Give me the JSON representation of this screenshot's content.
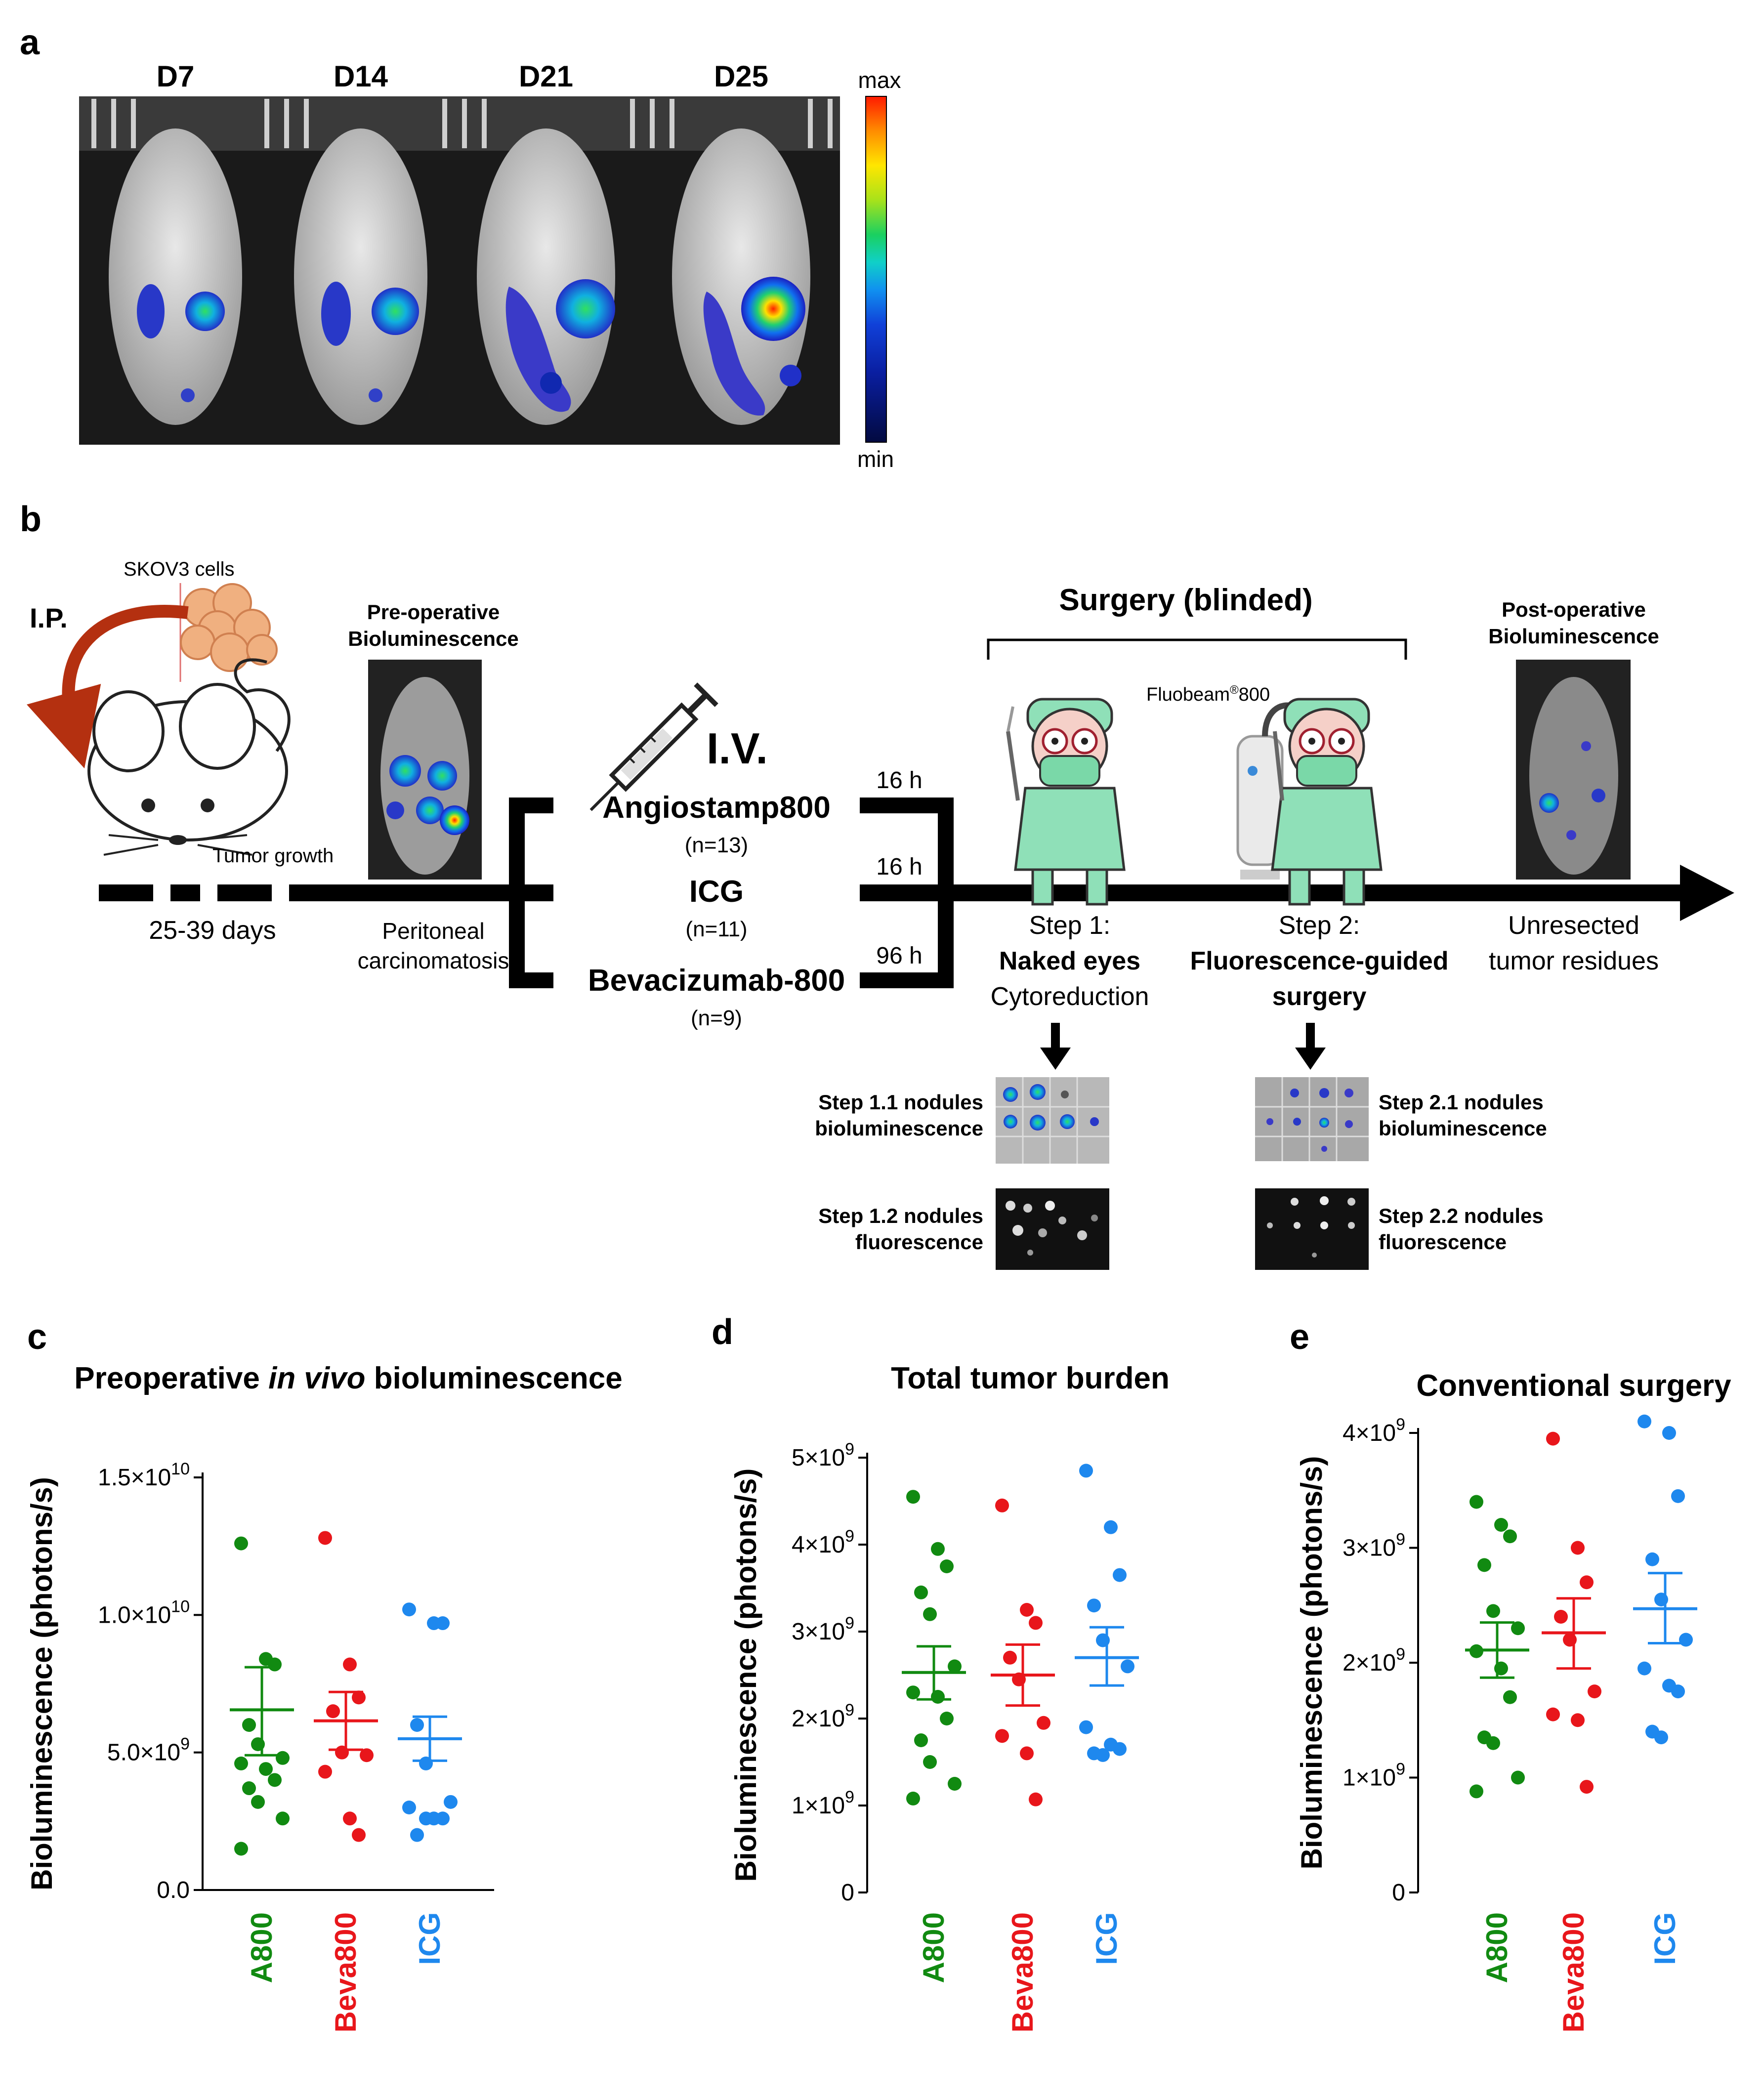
{
  "panel_a": {
    "letter": "a",
    "days": [
      "D7",
      "D14",
      "D21",
      "D25"
    ],
    "colorbar": {
      "max_label": "max",
      "min_label": "min"
    }
  },
  "panel_b": {
    "letter": "b",
    "skov3_label": "SKOV3 cells",
    "ip_label": "I.P.",
    "preop_line1": "Pre-operative",
    "preop_line2": "Bioluminescence",
    "tumor_growth": "Tumor growth",
    "days_range": "25-39 days",
    "peritoneal_line1": "Peritoneal",
    "peritoneal_line2": "carcinomatosis",
    "iv_label": "I.V.",
    "agents": [
      {
        "name": "Angiostamp800",
        "n": "(n=13)",
        "time": "16 h",
        "color": "#118011"
      },
      {
        "name": "ICG",
        "n": "(n=11)",
        "time": "16 h",
        "color": "#3f6fc8"
      },
      {
        "name": "Bevacizumab-800",
        "n": "(n=9)",
        "time": "96 h",
        "color": "#e8161b"
      }
    ],
    "surgery_title": "Surgery (blinded)",
    "fluobeam_prefix": "Fluobeam",
    "fluobeam_reg": "®",
    "fluobeam_suffix": "800",
    "step1_line1": "Step 1:",
    "step1_line2": "Naked eyes",
    "step1_line3": "Cytoreduction",
    "step2_line1": "Step 2:",
    "step2_line2": "Fluorescence-guided",
    "step2_line3": "surgery",
    "postop_line1": "Post-operative",
    "postop_line2": "Bioluminescence",
    "unresected_line1": "Unresected",
    "unresected_line2": "tumor residues",
    "step11_line1": "Step 1.1 nodules",
    "step11_line2": "bioluminescence",
    "step12_line1": "Step 1.2 nodules",
    "step12_line2": "fluorescence",
    "step21_line1": "Step 2.1 nodules",
    "step21_line2": "bioluminescence",
    "step22_line1": "Step 2.2 nodules",
    "step22_line2": "fluorescence"
  },
  "colors": {
    "A800": "#118a11",
    "Beva800": "#e8161b",
    "ICG": "#1e88ee",
    "blue_text": "#2aa7e8",
    "orange_text": "#ee7d22"
  },
  "chart_data": [
    {
      "panel": "c",
      "type": "scatter",
      "title_pre": "Preoperative ",
      "title_italic": "in vivo",
      "title_post": " bioluminescence",
      "ylabel": "Bioluminescence (photons/s)",
      "ylim": [
        0,
        15000000000.0
      ],
      "yticks": [
        {
          "v": 0,
          "label": "0.0"
        },
        {
          "v": 5000000000.0,
          "label": "5.0×10",
          "exp": "9"
        },
        {
          "v": 10000000000.0,
          "label": "1.0×10",
          "exp": "10"
        },
        {
          "v": 15000000000.0,
          "label": "1.5×10",
          "exp": "10"
        }
      ],
      "categories": [
        "A800",
        "Beva800",
        "ICG"
      ],
      "series": [
        {
          "name": "A800",
          "values": [
            12600000000.0,
            8400000000.0,
            8200000000.0,
            6000000000.0,
            5300000000.0,
            4800000000.0,
            4600000000.0,
            4400000000.0,
            4000000000.0,
            3700000000.0,
            3200000000.0,
            2600000000.0,
            1500000000.0
          ],
          "mean": 6550000000.0,
          "sem": [
            4900000000.0,
            8100000000.0
          ]
        },
        {
          "name": "Beva800",
          "values": [
            12800000000.0,
            8200000000.0,
            7000000000.0,
            6500000000.0,
            5000000000.0,
            4900000000.0,
            4300000000.0,
            2600000000.0,
            2000000000.0
          ],
          "mean": 6150000000.0,
          "sem": [
            5100000000.0,
            7200000000.0
          ]
        },
        {
          "name": "ICG",
          "values": [
            10200000000.0,
            9700000000.0,
            9700000000.0,
            6000000000.0,
            4600000000.0,
            3200000000.0,
            3000000000.0,
            2600000000.0,
            2600000000.0,
            2000000000.0,
            2600000000.0
          ],
          "mean": 5500000000.0,
          "sem": [
            4700000000.0,
            6300000000.0
          ]
        }
      ]
    },
    {
      "panel": "d",
      "type": "scatter",
      "title": "Total tumor burden",
      "ylabel": "Bioluminescence (photons/s)",
      "ylim": [
        0,
        5000000000.0
      ],
      "yticks": [
        {
          "v": 0,
          "label": "0"
        },
        {
          "v": 1000000000.0,
          "label": "1×10",
          "exp": "9"
        },
        {
          "v": 2000000000.0,
          "label": "2×10",
          "exp": "9"
        },
        {
          "v": 3000000000.0,
          "label": "3×10",
          "exp": "9"
        },
        {
          "v": 4000000000.0,
          "label": "4×10",
          "exp": "9"
        },
        {
          "v": 5000000000.0,
          "label": "5×10",
          "exp": "9"
        }
      ],
      "categories": [
        "A800",
        "Beva800",
        "ICG"
      ],
      "series": [
        {
          "name": "A800",
          "values": [
            4550000000.0,
            3950000000.0,
            3750000000.0,
            3450000000.0,
            3200000000.0,
            2600000000.0,
            2300000000.0,
            2250000000.0,
            2000000000.0,
            1750000000.0,
            1500000000.0,
            1250000000.0,
            1080000000.0
          ],
          "mean": 2530000000.0,
          "sem": [
            2220000000.0,
            2830000000.0
          ]
        },
        {
          "name": "Beva800",
          "values": [
            4450000000.0,
            3250000000.0,
            3100000000.0,
            2700000000.0,
            2450000000.0,
            1950000000.0,
            1800000000.0,
            1600000000.0,
            1070000000.0
          ],
          "mean": 2500000000.0,
          "sem": [
            2150000000.0,
            2850000000.0
          ]
        },
        {
          "name": "ICG",
          "values": [
            4850000000.0,
            4200000000.0,
            3650000000.0,
            3300000000.0,
            2900000000.0,
            2600000000.0,
            1900000000.0,
            1700000000.0,
            1650000000.0,
            1600000000.0,
            1580000000.0
          ],
          "mean": 2700000000.0,
          "sem": [
            2380000000.0,
            3050000000.0
          ]
        }
      ]
    },
    {
      "panel": "e",
      "type": "scatter",
      "title": "Conventional surgery",
      "ylabel": "Bioluminescence (photons/s)",
      "ylim": [
        0,
        4200000000.0
      ],
      "yticks": [
        {
          "v": 0,
          "label": "0"
        },
        {
          "v": 1000000000.0,
          "label": "1×10",
          "exp": "9"
        },
        {
          "v": 2000000000.0,
          "label": "2×10",
          "exp": "9"
        },
        {
          "v": 3000000000.0,
          "label": "3×10",
          "exp": "9"
        },
        {
          "v": 4000000000.0,
          "label": "4×10",
          "exp": "9"
        }
      ],
      "categories": [
        "A800",
        "Beva800",
        "ICG"
      ],
      "series": [
        {
          "name": "A800",
          "values": [
            3400000000.0,
            3200000000.0,
            3100000000.0,
            2850000000.0,
            2450000000.0,
            2300000000.0,
            2100000000.0,
            1950000000.0,
            1700000000.0,
            1350000000.0,
            1300000000.0,
            1000000000.0,
            880000000.0
          ],
          "mean": 2110000000.0,
          "sem": [
            1870000000.0,
            2350000000.0
          ]
        },
        {
          "name": "Beva800",
          "values": [
            3950000000.0,
            3000000000.0,
            2700000000.0,
            2400000000.0,
            2200000000.0,
            1750000000.0,
            1550000000.0,
            1500000000.0,
            920000000.0
          ],
          "mean": 2260000000.0,
          "sem": [
            1950000000.0,
            2560000000.0
          ]
        },
        {
          "name": "ICG",
          "values": [
            4100000000.0,
            4000000000.0,
            3450000000.0,
            2900000000.0,
            2550000000.0,
            2200000000.0,
            1950000000.0,
            1800000000.0,
            1750000000.0,
            1400000000.0,
            1350000000.0
          ],
          "mean": 2470000000.0,
          "sem": [
            2170000000.0,
            2780000000.0
          ]
        }
      ]
    }
  ]
}
